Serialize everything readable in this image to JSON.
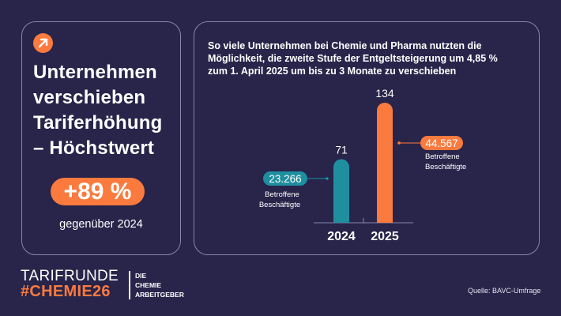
{
  "left_card": {
    "icon": "arrow-up-right-icon",
    "headline": [
      "Unternehmen",
      "verschieben",
      "Tariferhöhung",
      "– Höchstwert"
    ],
    "change_value": "+89 %",
    "change_label": "gegenüber 2024"
  },
  "right_card": {
    "subtitle": [
      "So viele Unternehmen bei Chemie und Pharma nutzten die",
      "Möglichkeit, die zweite Stufe der Entgeltsteigerung um 4,85 %",
      "zum 1. April 2025 um bis zu 3 Monate zu verschieben"
    ]
  },
  "footer": {
    "brand_line1": "TARIFRUNDE",
    "brand_line2": "#CHEMIE26",
    "org_lines": [
      "DIE",
      "CHEMIE",
      "ARBEITGEBER"
    ],
    "source": "Quelle: BAVC-Umfrage"
  },
  "colors": {
    "background": "#28244a",
    "accent_orange": "#fb7a3e",
    "accent_teal": "#1f8fa0",
    "border": "#8a86a8"
  },
  "chart_data": {
    "type": "bar",
    "title": "So viele Unternehmen bei Chemie und Pharma nutzten die Möglichkeit, die zweite Stufe der Entgeltsteigerung um 4,85 % zum 1. April 2025 um bis zu 3 Monate zu verschieben",
    "categories": [
      "2024",
      "2025"
    ],
    "values": [
      71,
      134
    ],
    "value_labels": [
      "71",
      "134"
    ],
    "colors": [
      "#1f8fa0",
      "#fb7a3e"
    ],
    "annotations": [
      {
        "category": "2024",
        "value": "23.266",
        "label": [
          "Betroffene",
          "Beschäftigte"
        ],
        "side": "left"
      },
      {
        "category": "2025",
        "value": "44.567",
        "label": [
          "Betroffene",
          "Beschäftigte"
        ],
        "side": "right"
      }
    ],
    "xlabel": "",
    "ylabel": "",
    "ylim": [
      0,
      134
    ],
    "grid": false
  }
}
